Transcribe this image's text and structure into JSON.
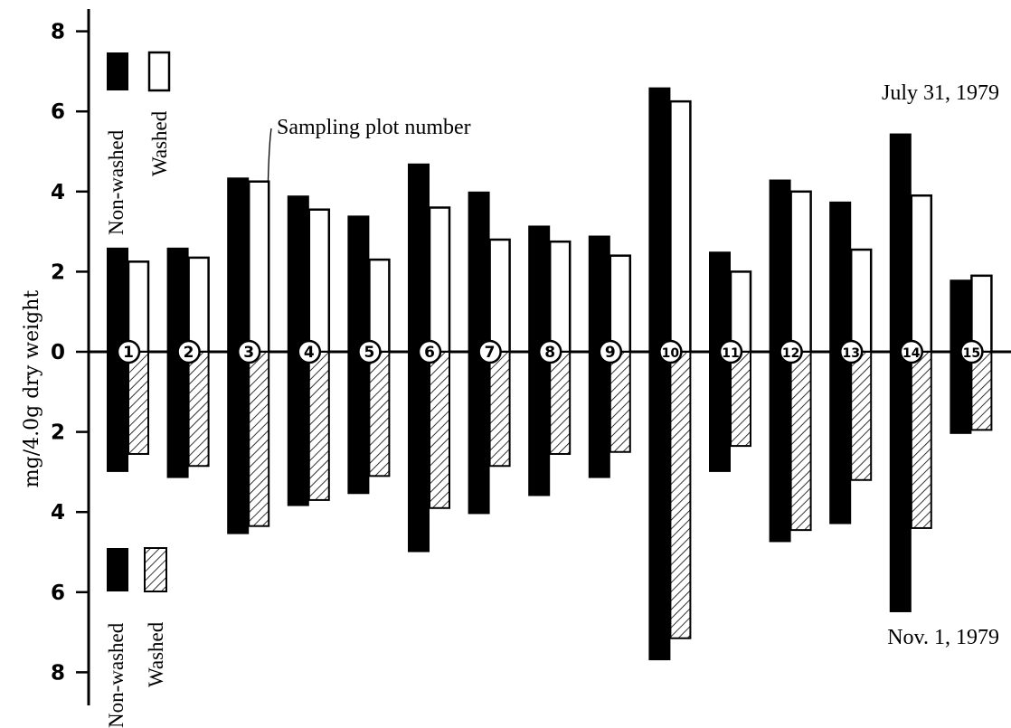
{
  "chart_data": {
    "type": "bar",
    "title": "",
    "xlabel": "",
    "ylabel": "mg/4.0g dry weight",
    "categories": [
      "1",
      "2",
      "3",
      "4",
      "5",
      "6",
      "7",
      "8",
      "9",
      "10",
      "11",
      "12",
      "13",
      "14",
      "15"
    ],
    "y_ticks": [
      "8",
      "6",
      "4",
      "2",
      "0",
      "2",
      "4",
      "6",
      "8"
    ],
    "upper_panel": {
      "date": "July 31, 1979",
      "ylim": [
        0,
        8
      ],
      "series": [
        {
          "name": "Non-washed",
          "values": [
            2.6,
            2.6,
            4.35,
            3.9,
            3.4,
            4.7,
            4.0,
            3.15,
            2.9,
            6.6,
            2.5,
            4.3,
            3.75,
            5.45,
            1.8
          ]
        },
        {
          "name": "Washed",
          "values": [
            2.25,
            2.35,
            4.25,
            3.55,
            2.3,
            3.6,
            2.8,
            2.75,
            2.4,
            6.25,
            2.0,
            4.0,
            2.55,
            3.9,
            1.9
          ]
        }
      ]
    },
    "lower_panel": {
      "date": "Nov. 1, 1979",
      "ylim": [
        0,
        8
      ],
      "series": [
        {
          "name": "Non-washed",
          "values": [
            3.0,
            3.15,
            4.55,
            3.85,
            3.55,
            5.0,
            4.05,
            3.6,
            3.15,
            7.7,
            3.0,
            4.75,
            4.3,
            6.5,
            2.05
          ]
        },
        {
          "name": "Washed",
          "values": [
            2.55,
            2.85,
            4.35,
            3.7,
            3.1,
            3.9,
            2.85,
            2.55,
            2.5,
            7.15,
            2.35,
            4.45,
            3.2,
            4.4,
            1.95
          ]
        }
      ]
    },
    "annotation": "Sampling plot number",
    "colors": {
      "non_washed": "#000000",
      "washed_upper": "#ffffff",
      "washed_lower": "hatched"
    }
  }
}
